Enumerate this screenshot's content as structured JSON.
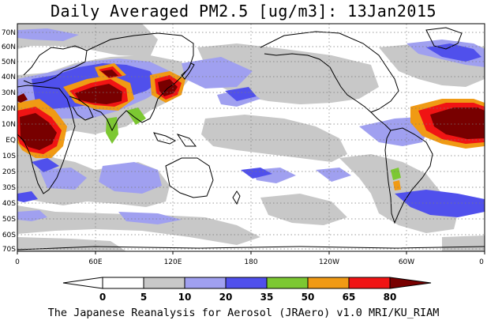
{
  "title": "Daily Averaged PM2.5 [ug/m3]: 13Jan2015",
  "credit": "The Japanese Reanalysis for Aerosol (JRAero) v1.0 MRI/KU_RIAM",
  "lat_labels": [
    "70N",
    "60N",
    "50N",
    "40N",
    "30N",
    "20N",
    "10N",
    "EQ",
    "10S",
    "20S",
    "30S",
    "40S",
    "50S",
    "60S",
    "70S"
  ],
  "lon_labels": [
    "0",
    "60E",
    "120E",
    "180",
    "120W",
    "60W",
    "0"
  ],
  "colorbar": {
    "levels": [
      "0",
      "5",
      "10",
      "20",
      "35",
      "50",
      "65",
      "80"
    ],
    "colors": [
      "#ffffff",
      "#c8c8c8",
      "#a0a0f0",
      "#5050ec",
      "#7cc832",
      "#f09a14",
      "#f01414",
      "#780000"
    ]
  },
  "palette": {
    "grey": "#c8c8c8",
    "light_blue": "#a0a0f0",
    "blue": "#5050ec",
    "green": "#7cc832",
    "orange": "#f09a14",
    "red": "#f01414",
    "dark_red": "#780000"
  },
  "features": {
    "saharan_dust_plume": "orange-red-darkred",
    "south_asia_haze": "orange-red-darkred",
    "east_china_haze": "red-darkred",
    "atlantic_dust_plume": "red-darkred",
    "southern_ocean_band": "blue"
  }
}
